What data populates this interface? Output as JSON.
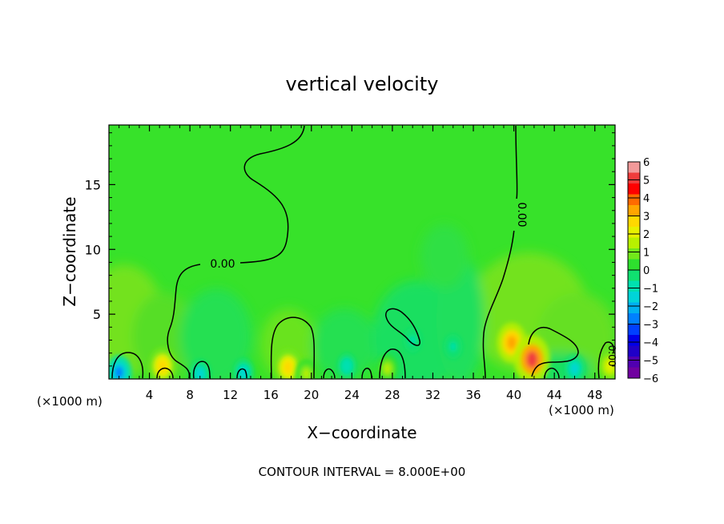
{
  "chart_data": {
    "type": "heatmap",
    "title": "vertical velocity",
    "xlabel": "X−coordinate",
    "ylabel": "Z−coordinate",
    "x_unit_left": "(×1000 m)",
    "x_unit_right": "(×1000 m)",
    "xlim": [
      0,
      50
    ],
    "ylim": [
      0,
      19.6
    ],
    "x_ticks": [
      4,
      8,
      12,
      16,
      20,
      24,
      28,
      32,
      36,
      40,
      44,
      48
    ],
    "y_ticks": [
      5,
      10,
      15
    ],
    "contour_interval_text": "CONTOUR INTERVAL = 8.000E+00",
    "contour_label": "0.00",
    "colorbar": {
      "range": [
        -6,
        6
      ],
      "tick_labels": [
        "6",
        "5",
        "4",
        "3",
        "2",
        "1",
        "0",
        "−1",
        "−2",
        "−3",
        "−4",
        "−5",
        "−6"
      ],
      "colors": [
        "#f29a9a",
        "#f03c3c",
        "#ff0000",
        "#ff6a00",
        "#ffa500",
        "#ffd800",
        "#e8f000",
        "#b8f000",
        "#72e81a",
        "#2ee02e",
        "#10e070",
        "#00e0b0",
        "#00d4d8",
        "#00b0f0",
        "#0080ff",
        "#0040ff",
        "#0000e8",
        "#2000c8",
        "#5000b0",
        "#7000a0"
      ]
    },
    "features": [
      {
        "x": 1.0,
        "z": 0.5,
        "w": -2.5
      },
      {
        "x": 5.3,
        "z": 1.0,
        "w": 3.0
      },
      {
        "x": 9.0,
        "z": 0.4,
        "w": -1.5
      },
      {
        "x": 13.3,
        "z": 0.5,
        "w": -1.5
      },
      {
        "x": 17.7,
        "z": 0.9,
        "w": 3.0
      },
      {
        "x": 19.5,
        "z": 0.4,
        "w": 1.5
      },
      {
        "x": 23.5,
        "z": 1.0,
        "w": -1.0
      },
      {
        "x": 27.5,
        "z": 0.8,
        "w": 1.5
      },
      {
        "x": 30.0,
        "z": 3.0,
        "w": -0.8
      },
      {
        "x": 34.0,
        "z": 2.5,
        "w": -0.8
      },
      {
        "x": 39.8,
        "z": 2.8,
        "w": 3.5
      },
      {
        "x": 41.8,
        "z": 1.5,
        "w": 5.0
      },
      {
        "x": 46.0,
        "z": 0.8,
        "w": -1.5
      },
      {
        "x": 49.5,
        "z": 1.0,
        "w": 2.0
      }
    ]
  }
}
